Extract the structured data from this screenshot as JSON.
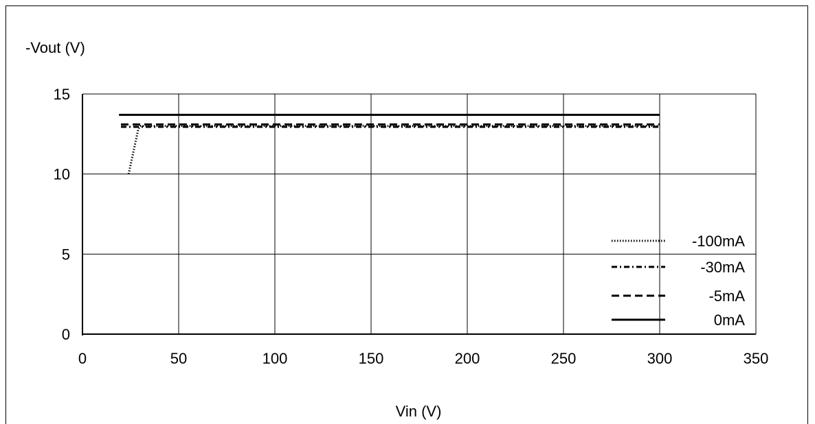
{
  "chart_data": {
    "type": "line",
    "title": "",
    "xlabel": "Vin (V)",
    "ylabel": "-Vout (V)",
    "xlim": [
      0,
      350
    ],
    "ylim": [
      0,
      15
    ],
    "x_ticks": [
      "0",
      "50",
      "100",
      "150",
      "200",
      "250",
      "300",
      "350"
    ],
    "y_ticks": [
      "0",
      "5",
      "10",
      "15"
    ],
    "grid": true,
    "legend_position": "bottom-right",
    "series": [
      {
        "name": "-100mA",
        "style": "dotted",
        "x": [
          24,
          29,
          30,
          300
        ],
        "y": [
          10.0,
          12.8,
          13.0,
          13.0
        ]
      },
      {
        "name": "-30mA",
        "style": "dash-dot",
        "x": [
          20,
          300
        ],
        "y": [
          12.95,
          12.95
        ]
      },
      {
        "name": "-5mA",
        "style": "dashed",
        "x": [
          20,
          300
        ],
        "y": [
          13.1,
          13.1
        ]
      },
      {
        "name": "0mA",
        "style": "solid",
        "x": [
          19,
          300
        ],
        "y": [
          13.7,
          13.7
        ]
      }
    ]
  }
}
